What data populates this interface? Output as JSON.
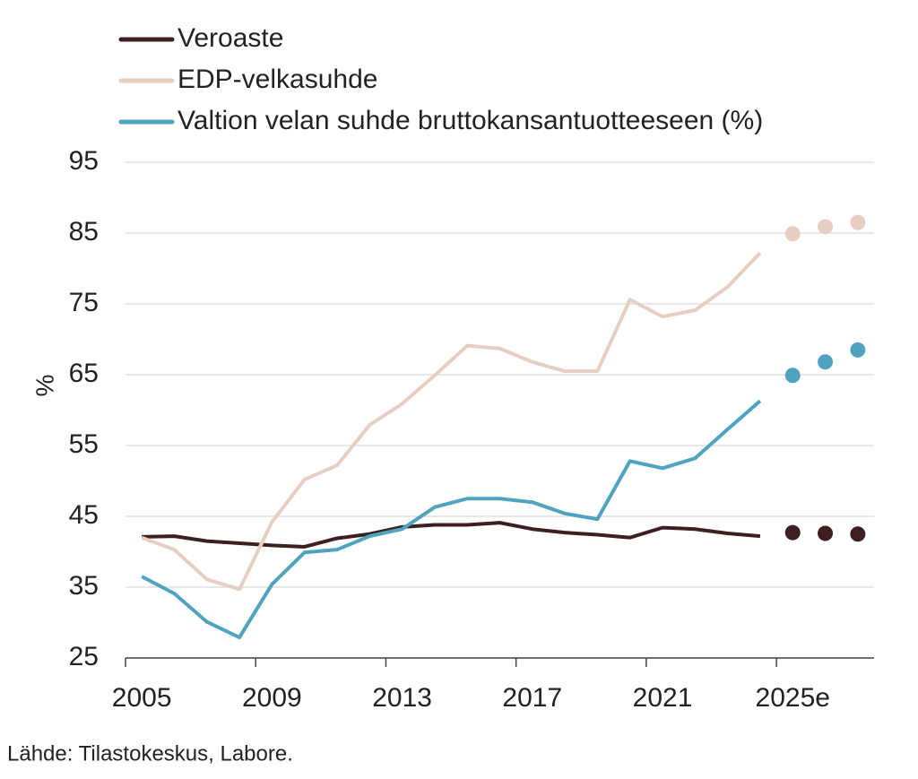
{
  "chart_data": {
    "type": "line",
    "y_label": "%",
    "source": "Lähde: Tilastokeskus, Labore.",
    "categories": [
      "2005",
      null,
      null,
      null,
      "2009",
      null,
      null,
      null,
      "2013",
      null,
      null,
      null,
      "2017",
      null,
      null,
      null,
      "2021",
      null,
      null,
      null,
      "2025e",
      null,
      null
    ],
    "ylim": [
      25,
      95
    ],
    "yticks": [
      25,
      35,
      45,
      55,
      65,
      75,
      85,
      95
    ],
    "grid": true,
    "legend": "top-left",
    "series": [
      {
        "name": "Veroaste",
        "color": "#3d1f22",
        "values": [
          42.1,
          42.2,
          41.5,
          41.2,
          40.9,
          40.7,
          41.9,
          42.5,
          43.5,
          43.8,
          43.8,
          44.1,
          43.2,
          42.7,
          42.4,
          42.0,
          43.4,
          43.2,
          42.6,
          42.2,
          null,
          null,
          null
        ],
        "forecast": [
          null,
          null,
          null,
          null,
          null,
          null,
          null,
          null,
          null,
          null,
          null,
          null,
          null,
          null,
          null,
          null,
          null,
          null,
          null,
          null,
          42.7,
          42.6,
          42.5
        ]
      },
      {
        "name": "EDP-velkasuhde",
        "color": "#e6cfc2",
        "values": [
          42.0,
          40.3,
          36.1,
          34.7,
          44.2,
          50.2,
          52.2,
          57.9,
          60.9,
          64.9,
          69.1,
          68.7,
          66.8,
          65.5,
          65.5,
          75.6,
          73.2,
          74.1,
          77.4,
          82.2,
          null,
          null,
          null
        ],
        "forecast": [
          null,
          null,
          null,
          null,
          null,
          null,
          null,
          null,
          null,
          null,
          null,
          null,
          null,
          null,
          null,
          null,
          null,
          null,
          null,
          null,
          84.9,
          85.9,
          86.5
        ]
      },
      {
        "name": "Valtion velan suhde bruttokansantuotteeseen (%)",
        "color": "#4fa3bf",
        "values": [
          36.5,
          34.1,
          30.1,
          27.9,
          35.4,
          39.9,
          40.3,
          42.2,
          43.2,
          46.3,
          47.5,
          47.5,
          47.0,
          45.4,
          44.6,
          52.8,
          51.8,
          53.2,
          57.3,
          61.3,
          null,
          null,
          null
        ],
        "forecast": [
          null,
          null,
          null,
          null,
          null,
          null,
          null,
          null,
          null,
          null,
          null,
          null,
          null,
          null,
          null,
          null,
          null,
          null,
          null,
          null,
          64.9,
          66.8,
          68.5
        ]
      }
    ]
  }
}
